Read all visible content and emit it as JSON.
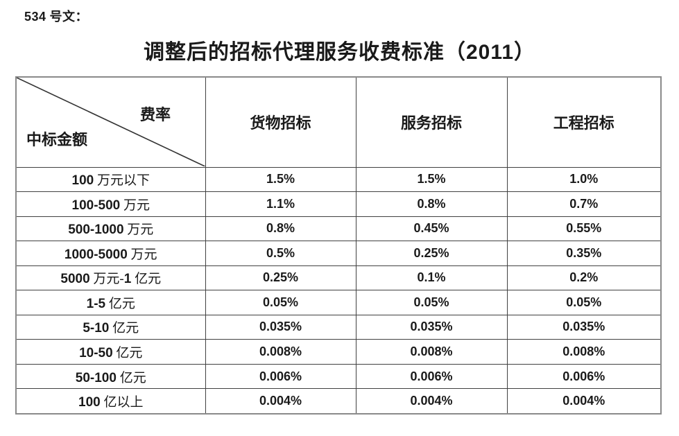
{
  "page": {
    "doc_ref": "534 号文：",
    "title": "调整后的招标代理服务收费标准（2011）"
  },
  "table": {
    "corner": {
      "top_right_label": "费率",
      "bottom_left_label": "中标金额"
    },
    "columns": [
      "货物招标",
      "服务招标",
      "工程招标"
    ],
    "rows": [
      {
        "label": "100 万元以下",
        "values": [
          "1.5%",
          "1.5%",
          "1.0%"
        ]
      },
      {
        "label": "100-500 万元",
        "values": [
          "1.1%",
          "0.8%",
          "0.7%"
        ]
      },
      {
        "label": "500-1000 万元",
        "values": [
          "0.8%",
          "0.45%",
          "0.55%"
        ]
      },
      {
        "label": "1000-5000 万元",
        "values": [
          "0.5%",
          "0.25%",
          "0.35%"
        ]
      },
      {
        "label": "5000 万元-1 亿元",
        "values": [
          "0.25%",
          "0.1%",
          "0.2%"
        ]
      },
      {
        "label": "1-5 亿元",
        "values": [
          "0.05%",
          "0.05%",
          "0.05%"
        ]
      },
      {
        "label": "5-10 亿元",
        "values": [
          "0.035%",
          "0.035%",
          "0.035%"
        ]
      },
      {
        "label": "10-50 亿元",
        "values": [
          "0.008%",
          "0.008%",
          "0.008%"
        ]
      },
      {
        "label": "50-100 亿元",
        "values": [
          "0.006%",
          "0.006%",
          "0.006%"
        ]
      },
      {
        "label": "100 亿以上",
        "values": [
          "0.004%",
          "0.004%",
          "0.004%"
        ]
      }
    ],
    "text_color": "#1a1a1a",
    "inner_border_color": "#404040",
    "outer_border_color": "#8a8a8a"
  }
}
